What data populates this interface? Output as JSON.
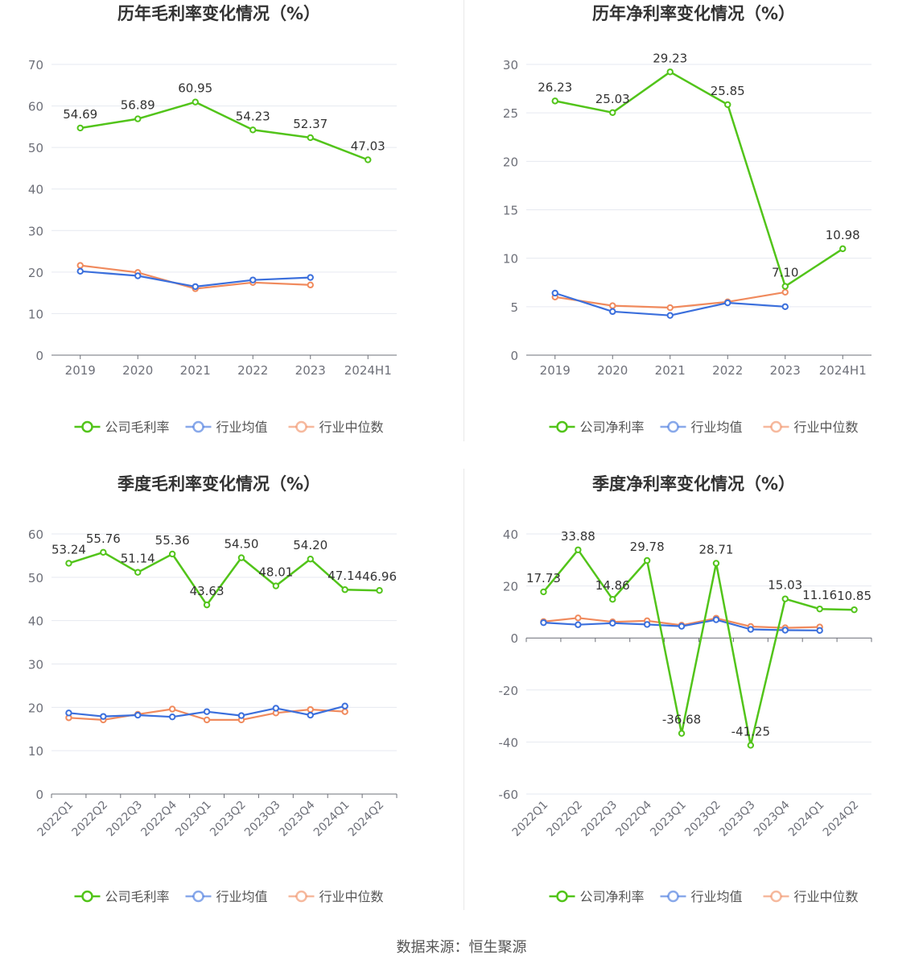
{
  "source_text": "数据来源：恒生聚源",
  "colors": {
    "company": "#52c41a",
    "avg": "#3b6fdc",
    "median": "#f08a5d",
    "grid": "#e6e9f0",
    "axis": "#6e7079",
    "text": "#333333"
  },
  "chart_data": [
    {
      "type": "line",
      "title": "历年毛利率变化情况（%）",
      "categories": [
        "2019",
        "2020",
        "2021",
        "2022",
        "2023",
        "2024H1"
      ],
      "ylim": [
        0,
        70
      ],
      "yticks": [
        0,
        10,
        20,
        30,
        40,
        50,
        60,
        70
      ],
      "rotate_x": false,
      "series": [
        {
          "name": "公司毛利率",
          "color": "#52c41a",
          "labels": true,
          "values": [
            54.69,
            56.89,
            60.95,
            54.23,
            52.37,
            47.03
          ]
        },
        {
          "name": "行业均值",
          "color": "#3b6fdc",
          "labels": false,
          "values": [
            20.2,
            19.1,
            16.5,
            18.1,
            18.7,
            null
          ]
        },
        {
          "name": "行业中位数",
          "color": "#f08a5d",
          "labels": false,
          "values": [
            21.6,
            19.9,
            16.0,
            17.5,
            16.9,
            null
          ]
        }
      ],
      "legend": "bottom"
    },
    {
      "type": "line",
      "title": "历年净利率变化情况（%）",
      "categories": [
        "2019",
        "2020",
        "2021",
        "2022",
        "2023",
        "2024H1"
      ],
      "ylim": [
        0,
        30
      ],
      "yticks": [
        0,
        5,
        10,
        15,
        20,
        25,
        30
      ],
      "rotate_x": false,
      "series": [
        {
          "name": "公司净利率",
          "color": "#52c41a",
          "labels": true,
          "values": [
            26.23,
            25.03,
            29.23,
            25.85,
            7.1,
            10.98
          ]
        },
        {
          "name": "行业均值",
          "color": "#3b6fdc",
          "labels": false,
          "values": [
            6.4,
            4.5,
            4.1,
            5.4,
            5.0,
            null
          ]
        },
        {
          "name": "行业中位数",
          "color": "#f08a5d",
          "labels": false,
          "values": [
            6.0,
            5.1,
            4.9,
            5.5,
            6.5,
            null
          ]
        }
      ],
      "legend": "bottom"
    },
    {
      "type": "line",
      "title": "季度毛利率变化情况（%）",
      "categories": [
        "2022Q1",
        "2022Q2",
        "2022Q3",
        "2022Q4",
        "2023Q1",
        "2023Q2",
        "2023Q3",
        "2023Q4",
        "2024Q1",
        "2024Q2"
      ],
      "ylim": [
        0,
        60
      ],
      "yticks": [
        0,
        10,
        20,
        30,
        40,
        50,
        60
      ],
      "rotate_x": true,
      "series": [
        {
          "name": "公司毛利率",
          "color": "#52c41a",
          "labels": true,
          "values": [
            53.24,
            55.76,
            51.14,
            55.36,
            43.63,
            54.5,
            48.01,
            54.2,
            47.14,
            46.96
          ]
        },
        {
          "name": "行业均值",
          "color": "#3b6fdc",
          "labels": false,
          "values": [
            18.7,
            17.9,
            18.2,
            17.8,
            19.0,
            18.1,
            19.8,
            18.2,
            20.3,
            null
          ]
        },
        {
          "name": "行业中位数",
          "color": "#f08a5d",
          "labels": false,
          "values": [
            17.6,
            17.1,
            18.4,
            19.6,
            17.1,
            17.1,
            18.7,
            19.5,
            19.0,
            null
          ]
        }
      ],
      "legend": "bottom"
    },
    {
      "type": "line",
      "title": "季度净利率变化情况（%）",
      "categories": [
        "2022Q1",
        "2022Q2",
        "2022Q3",
        "2022Q4",
        "2023Q1",
        "2023Q2",
        "2023Q3",
        "2023Q4",
        "2024Q1",
        "2024Q2"
      ],
      "ylim": [
        -60,
        40
      ],
      "yticks": [
        -60,
        -40,
        -20,
        0,
        20,
        40
      ],
      "rotate_x": true,
      "series": [
        {
          "name": "公司净利率",
          "color": "#52c41a",
          "labels": true,
          "values": [
            17.73,
            33.88,
            14.86,
            29.78,
            -36.68,
            28.71,
            -41.25,
            15.03,
            11.16,
            10.85
          ]
        },
        {
          "name": "行业均值",
          "color": "#3b6fdc",
          "labels": false,
          "values": [
            5.9,
            5.1,
            5.7,
            5.2,
            4.5,
            7.0,
            3.3,
            3.0,
            2.9,
            null
          ]
        },
        {
          "name": "行业中位数",
          "color": "#f08a5d",
          "labels": false,
          "values": [
            6.3,
            7.7,
            6.2,
            6.6,
            4.9,
            7.6,
            4.4,
            3.9,
            4.2,
            null
          ]
        }
      ],
      "legend": "bottom"
    }
  ]
}
